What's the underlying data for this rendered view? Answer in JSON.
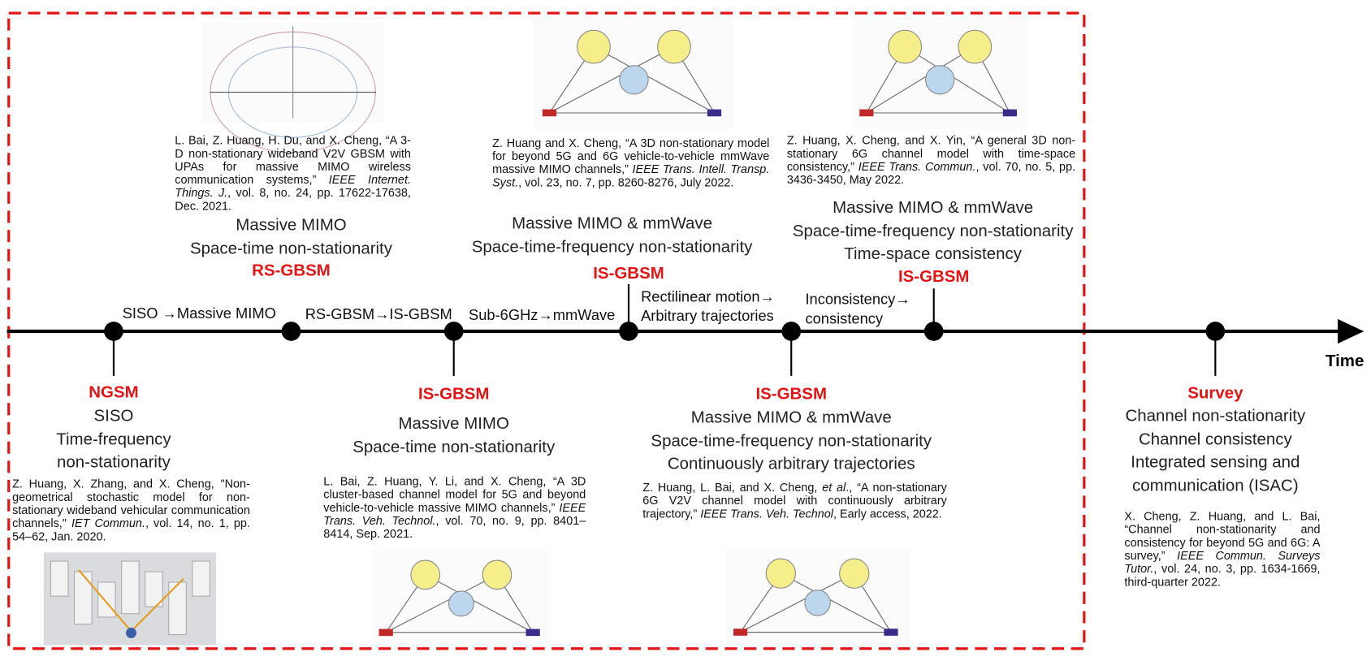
{
  "timeline": {
    "axis_label": "Time",
    "transitions": [
      [
        "SISO →Massive MIMO"
      ],
      [
        "RS-GBSM→IS-GBSM"
      ],
      [
        "Sub-6GHz→mmWave"
      ],
      [
        "Rectilinear motion→",
        "Arbitrary trajectories"
      ],
      [
        "Inconsistency→",
        "consistency"
      ]
    ],
    "nodes": [
      {
        "model": "NGSM",
        "features": [
          "SISO",
          "Time-frequency",
          "non-stationarity"
        ],
        "reference": [
          {
            "text": "Z. Huang, X. Zhang, and X. Cheng, \"Non-geometrical stochastic model for non-stationary wideband vehicular communication channels,\" ",
            "italic": false
          },
          {
            "text": "IET Commun.",
            "italic": true
          },
          {
            "text": ", vol. 14, no. 1, pp. 54–62, Jan. 2020.",
            "italic": false
          }
        ]
      },
      {
        "model": "RS-GBSM",
        "features": [
          "Massive MIMO",
          "Space-time non-stationarity"
        ],
        "reference": [
          {
            "text": "L. Bai, Z. Huang, H. Du, and X. Cheng, “A 3-D non-stationary wideband V2V GBSM with UPAs for massive MIMO wireless communication systems,” ",
            "italic": false
          },
          {
            "text": "IEEE Internet. Things. J.",
            "italic": true
          },
          {
            "text": ", vol. 8, no. 24, pp. 17622-17638, Dec. 2021.",
            "italic": false
          }
        ]
      },
      {
        "model": "IS-GBSM",
        "features": [
          "Massive MIMO",
          "Space-time non-stationarity"
        ],
        "reference": [
          {
            "text": "L. Bai, Z. Huang, Y. Li, and X. Cheng, “A 3D cluster-based channel model for 5G and beyond vehicle-to-vehicle massive MIMO channels,” ",
            "italic": false
          },
          {
            "text": "IEEE Trans. Veh. Technol.",
            "italic": true
          },
          {
            "text": ", vol. 70, no. 9, pp. 8401–8414, Sep. 2021.",
            "italic": false
          }
        ]
      },
      {
        "model": "IS-GBSM",
        "features": [
          "Massive MIMO & mmWave",
          "Space-time-frequency non-stationarity"
        ],
        "reference": [
          {
            "text": "Z. Huang and X. Cheng, “A 3D non-stationary model for beyond 5G and 6G vehicle-to-vehicle mmWave massive MIMO channels,” ",
            "italic": false
          },
          {
            "text": "IEEE Trans. Intell. Transp. Syst.",
            "italic": true
          },
          {
            "text": ", vol. 23, no. 7, pp. 8260-8276, July 2022.",
            "italic": false
          }
        ]
      },
      {
        "model": "IS-GBSM",
        "features": [
          "Massive MIMO & mmWave",
          "Space-time-frequency non-stationarity",
          "Continuously arbitrary trajectories"
        ],
        "reference": [
          {
            "text": "Z. Huang, L. Bai, and X. Cheng, ",
            "italic": false
          },
          {
            "text": "et al",
            "italic": true
          },
          {
            "text": "., “A non-stationary 6G V2V channel model with continuously arbitrary trajectory,” ",
            "italic": false
          },
          {
            "text": "IEEE Trans. Veh. Technol",
            "italic": true
          },
          {
            "text": ", Early access, 2022.",
            "italic": false
          }
        ]
      },
      {
        "model": "IS-GBSM",
        "features": [
          "Massive MIMO & mmWave",
          "Space-time-frequency non-stationarity",
          "Time-space consistency"
        ],
        "reference": [
          {
            "text": "Z. Huang, X. Cheng, and X. Yin, “A general 3D non-stationary 6G channel model with time-space consistency,” ",
            "italic": false
          },
          {
            "text": "IEEE Trans. Commun.",
            "italic": true
          },
          {
            "text": ", vol. 70, no. 5, pp. 3436-3450, May 2022.",
            "italic": false
          }
        ]
      },
      {
        "model": "Survey",
        "features": [
          "Channel non-stationarity",
          "Channel consistency",
          "Integrated sensing and",
          "communication (ISAC)"
        ],
        "reference": [
          {
            "text": "X. Cheng, Z. Huang, and L. Bai, “Channel non-stationarity and consistency for beyond 5G and 6G: A survey,” ",
            "italic": false
          },
          {
            "text": "IEEE Commun. Surveys Tutor.",
            "italic": true
          },
          {
            "text": ", vol. 24, no. 3, pp. 1634-1669, third-quarter 2022.",
            "italic": false
          }
        ]
      }
    ]
  }
}
